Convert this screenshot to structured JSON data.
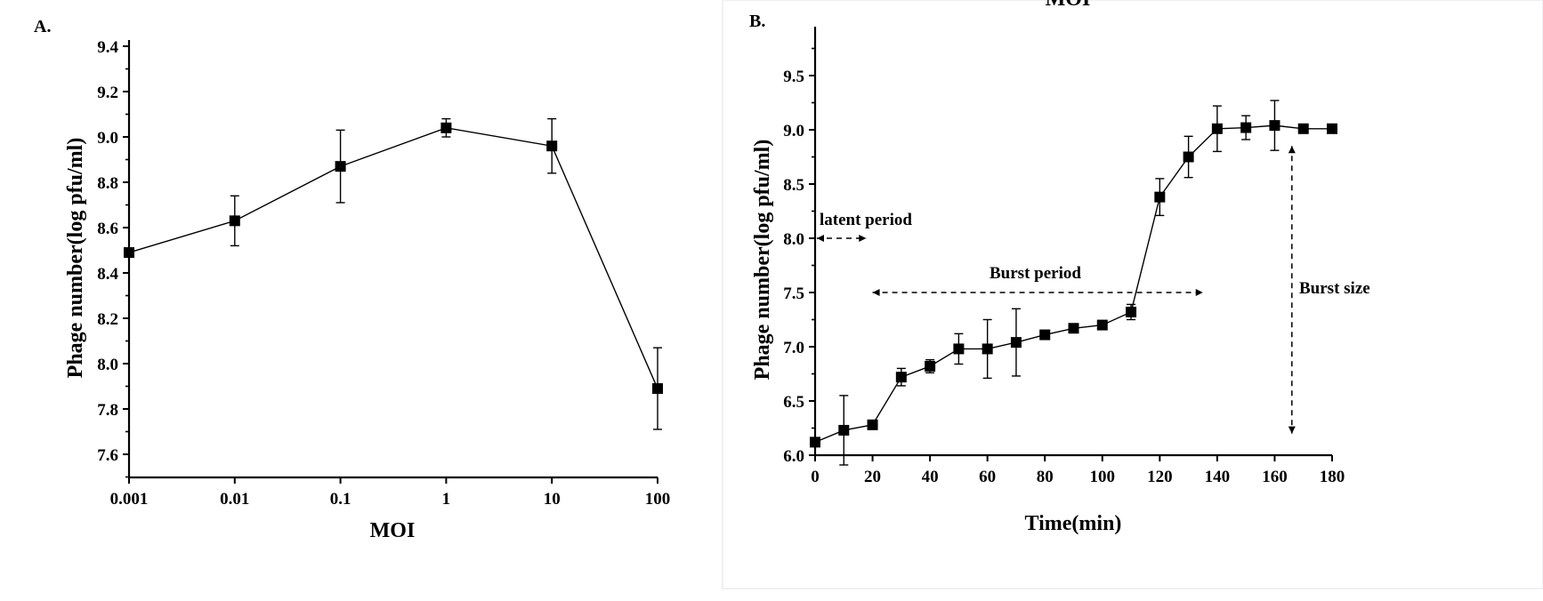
{
  "chart_data": [
    {
      "panel_label": "A.",
      "type": "line",
      "xscale": "log",
      "xlabel": "MOI",
      "ylabel": "Phage number(log pfu/ml)",
      "x_tick_labels": [
        "0.001",
        "0.01",
        "0.1",
        "1",
        "10",
        "100"
      ],
      "y_tick_labels": [
        "7.6",
        "7.8",
        "8.0",
        "8.2",
        "8.4",
        "8.6",
        "8.8",
        "9.0",
        "9.2",
        "9.4"
      ],
      "xlim": [
        0.001,
        100
      ],
      "ylim": [
        7.5,
        9.4
      ],
      "x": [
        0.001,
        0.01,
        0.1,
        1,
        10,
        100
      ],
      "y": [
        8.49,
        8.63,
        8.87,
        9.04,
        8.96,
        7.89
      ],
      "error": [
        0.0,
        0.11,
        0.16,
        0.04,
        0.12,
        0.18
      ],
      "marker": "square",
      "color": "#000000"
    },
    {
      "panel_label": "B.",
      "type": "line",
      "top_cut_text": "MOI",
      "xlabel": "Time(min)",
      "ylabel": "Phage number(log pfu/ml)",
      "x_tick_labels": [
        "0",
        "20",
        "40",
        "60",
        "80",
        "100",
        "120",
        "140",
        "160",
        "180"
      ],
      "y_tick_labels": [
        "6.0",
        "6.5",
        "7.0",
        "7.5",
        "8.0",
        "8.5",
        "9.0",
        "9.5"
      ],
      "xlim": [
        0,
        180
      ],
      "ylim": [
        6.0,
        9.75
      ],
      "x": [
        0,
        10,
        20,
        30,
        40,
        50,
        60,
        70,
        80,
        90,
        100,
        110,
        120,
        130,
        140,
        150,
        160,
        170,
        180
      ],
      "y": [
        6.12,
        6.23,
        6.28,
        6.72,
        6.82,
        6.98,
        6.98,
        7.04,
        7.11,
        7.17,
        7.2,
        7.32,
        8.38,
        8.75,
        9.01,
        9.02,
        9.04,
        9.01,
        9.01
      ],
      "error": [
        0.0,
        0.32,
        0.03,
        0.08,
        0.06,
        0.14,
        0.27,
        0.31,
        0.03,
        0.02,
        0.02,
        0.07,
        0.17,
        0.19,
        0.21,
        0.11,
        0.23,
        0.02,
        0.02
      ],
      "marker": "square",
      "color": "#000000",
      "annotations": [
        {
          "text": "latent period",
          "arrow_x": [
            0,
            10
          ],
          "arrow_y": 8.0
        },
        {
          "text": "Burst period",
          "arrow_x": [
            20,
            135
          ],
          "arrow_y": 7.5
        },
        {
          "text": "Burst size",
          "arrow_x": 166,
          "arrow_y": [
            8.85,
            6.2
          ]
        }
      ]
    }
  ]
}
